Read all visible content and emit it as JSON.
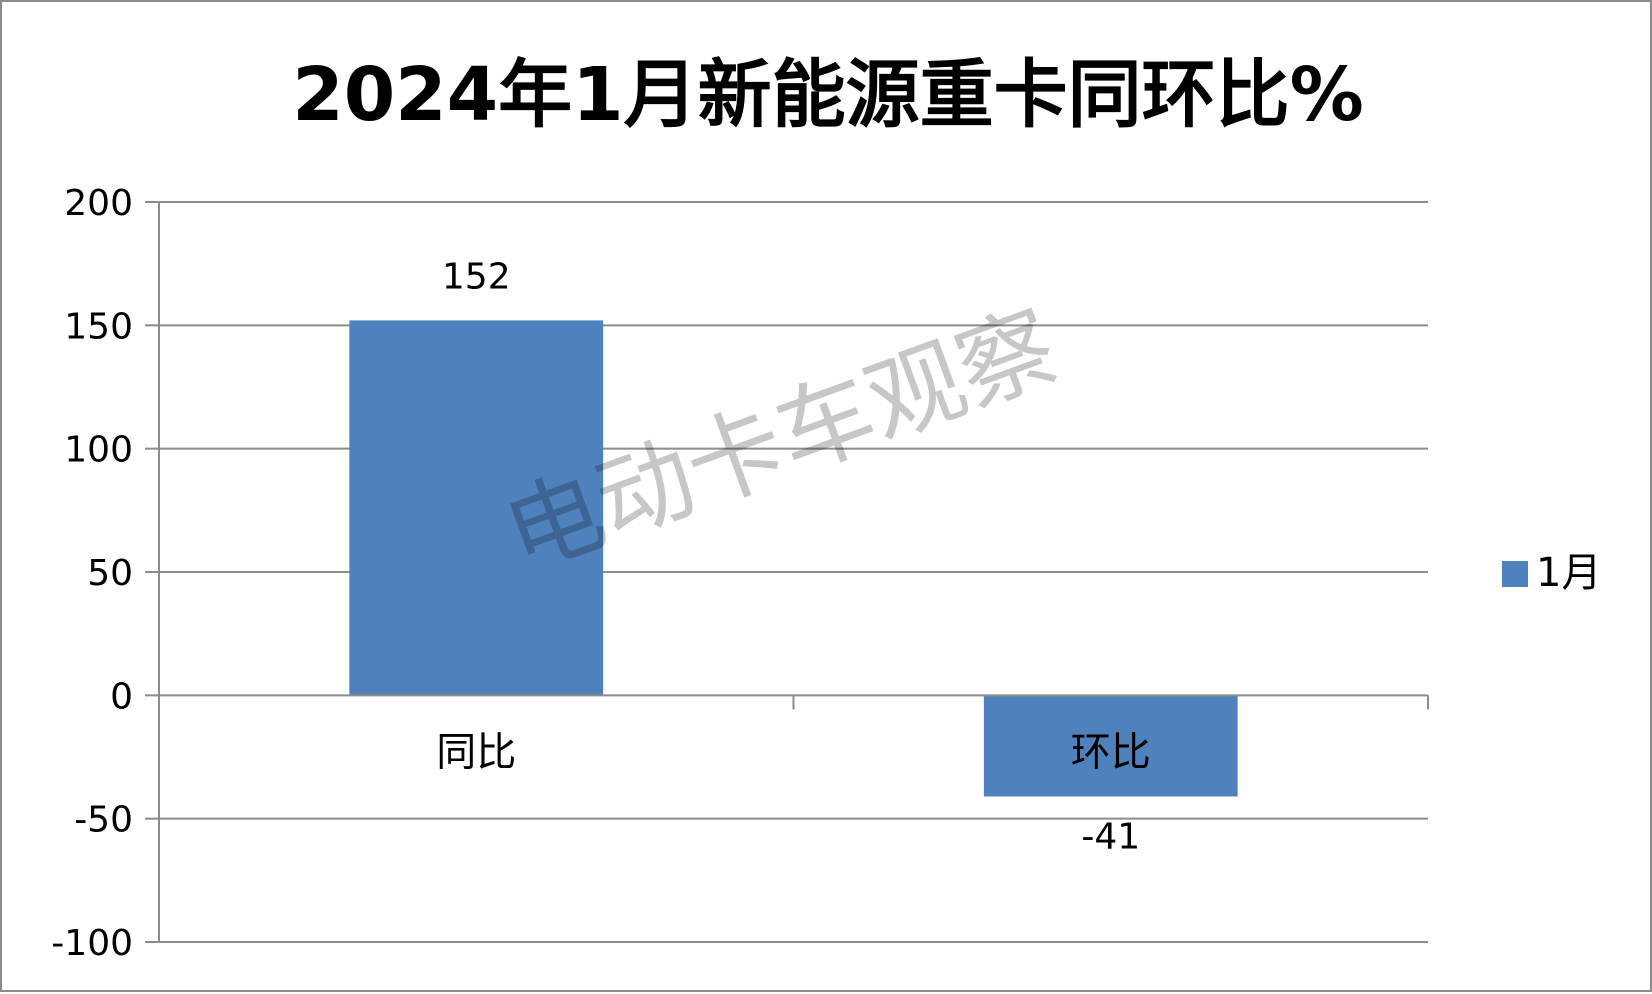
{
  "chart_data": {
    "type": "bar",
    "title": "2024年1月新能源重卡同环比%",
    "categories": [
      "同比",
      "环比"
    ],
    "series": [
      {
        "name": "1月",
        "values": [
          152,
          -41
        ],
        "color": "#4f81bd"
      }
    ],
    "data_labels": [
      "152",
      "-41"
    ],
    "ylim": [
      -100,
      200
    ],
    "yticks": [
      200,
      150,
      100,
      50,
      0,
      -50,
      -100
    ],
    "ytick_labels": [
      "200",
      "150",
      "100",
      "50",
      "0",
      "-50",
      "-100"
    ],
    "grid": true,
    "legend_position": "right",
    "xlabel": "",
    "ylabel": ""
  },
  "watermark": "电动卡车观察",
  "colors": {
    "bar": "#4f81bd",
    "grid": "#8c8c8c",
    "axis": "#8c8c8c",
    "border": "#8c8c8c"
  }
}
